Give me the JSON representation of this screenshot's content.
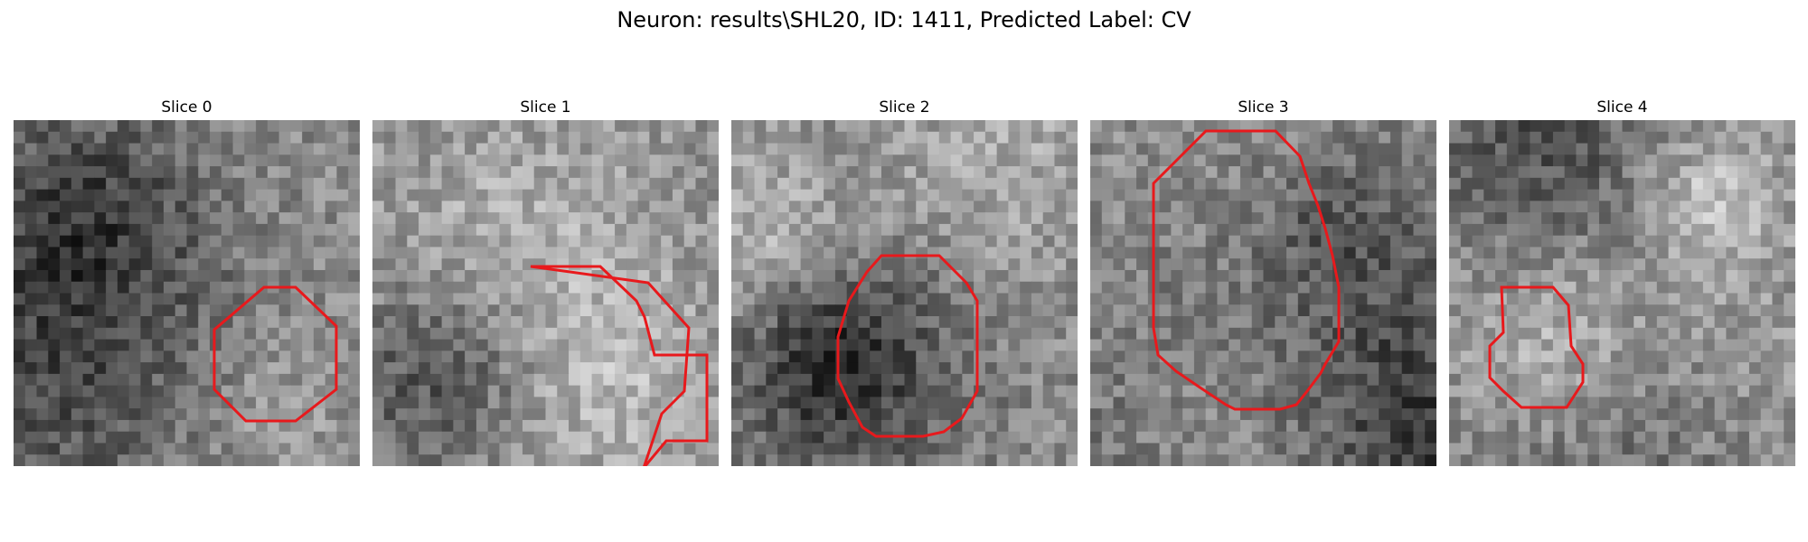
{
  "figure": {
    "title": "Neuron: results\\SHL20, ID: 1411, Predicted Label: CV"
  },
  "colors": {
    "contour": "#e8191c",
    "background": "#ffffff"
  },
  "panels": [
    {
      "title": "Slice 0",
      "seed": 11
    },
    {
      "title": "Slice 1",
      "seed": 23
    },
    {
      "title": "Slice 2",
      "seed": 37
    },
    {
      "title": "Slice 3",
      "seed": 41
    },
    {
      "title": "Slice 4",
      "seed": 59
    }
  ]
}
